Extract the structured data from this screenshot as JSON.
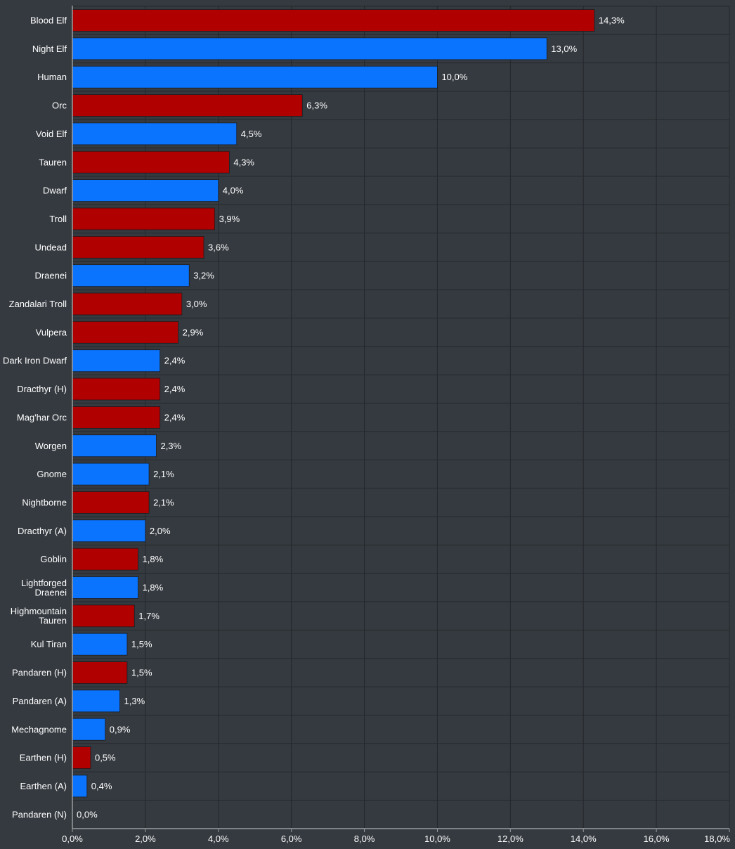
{
  "chart_data": {
    "type": "bar",
    "orientation": "horizontal",
    "categories": [
      "Blood Elf",
      "Night Elf",
      "Human",
      "Orc",
      "Void Elf",
      "Tauren",
      "Dwarf",
      "Troll",
      "Undead",
      "Draenei",
      "Zandalari Troll",
      "Vulpera",
      "Dark Iron Dwarf",
      "Dracthyr (H)",
      "Mag'har Orc",
      "Worgen",
      "Gnome",
      "Nightborne",
      "Dracthyr (A)",
      "Goblin",
      "Lightforged Draenei",
      "Highmountain Tauren",
      "Kul Tiran",
      "Pandaren (H)",
      "Pandaren (A)",
      "Mechagnome",
      "Earthen (H)",
      "Earthen (A)",
      "Pandaren (N)"
    ],
    "values": [
      14.3,
      13.0,
      10.0,
      6.3,
      4.5,
      4.3,
      4.0,
      3.9,
      3.6,
      3.2,
      3.0,
      2.9,
      2.4,
      2.4,
      2.4,
      2.3,
      2.1,
      2.1,
      2.0,
      1.8,
      1.8,
      1.7,
      1.5,
      1.5,
      1.3,
      0.9,
      0.5,
      0.4,
      0.0
    ],
    "value_labels": [
      "14,3%",
      "13,0%",
      "10,0%",
      "6,3%",
      "4,5%",
      "4,3%",
      "4,0%",
      "3,9%",
      "3,6%",
      "3,2%",
      "3,0%",
      "2,9%",
      "2,4%",
      "2,4%",
      "2,4%",
      "2,3%",
      "2,1%",
      "2,1%",
      "2,0%",
      "1,8%",
      "1,8%",
      "1,7%",
      "1,5%",
      "1,5%",
      "1,3%",
      "0,9%",
      "0,5%",
      "0,4%",
      "0,0%"
    ],
    "factions": [
      "H",
      "A",
      "A",
      "H",
      "A",
      "H",
      "A",
      "H",
      "H",
      "A",
      "H",
      "H",
      "A",
      "H",
      "H",
      "A",
      "A",
      "H",
      "A",
      "H",
      "A",
      "H",
      "A",
      "H",
      "A",
      "A",
      "H",
      "A",
      "N"
    ],
    "faction_colors": {
      "H": "#b00000",
      "A": "#0a74ff",
      "N": "#808080"
    },
    "xlim": [
      0,
      18
    ],
    "xticks": [
      0,
      2,
      4,
      6,
      8,
      10,
      12,
      14,
      16,
      18
    ],
    "xtick_labels": [
      "0,0%",
      "2,0%",
      "4,0%",
      "6,0%",
      "8,0%",
      "10,0%",
      "12,0%",
      "14,0%",
      "16,0%",
      "18,0%"
    ],
    "title": "",
    "xlabel": "",
    "ylabel": "",
    "grid": true,
    "colors": {
      "background": "#353a40",
      "grid": "#24282c",
      "axis": "#9a9da0",
      "text": "#ffffff"
    }
  }
}
